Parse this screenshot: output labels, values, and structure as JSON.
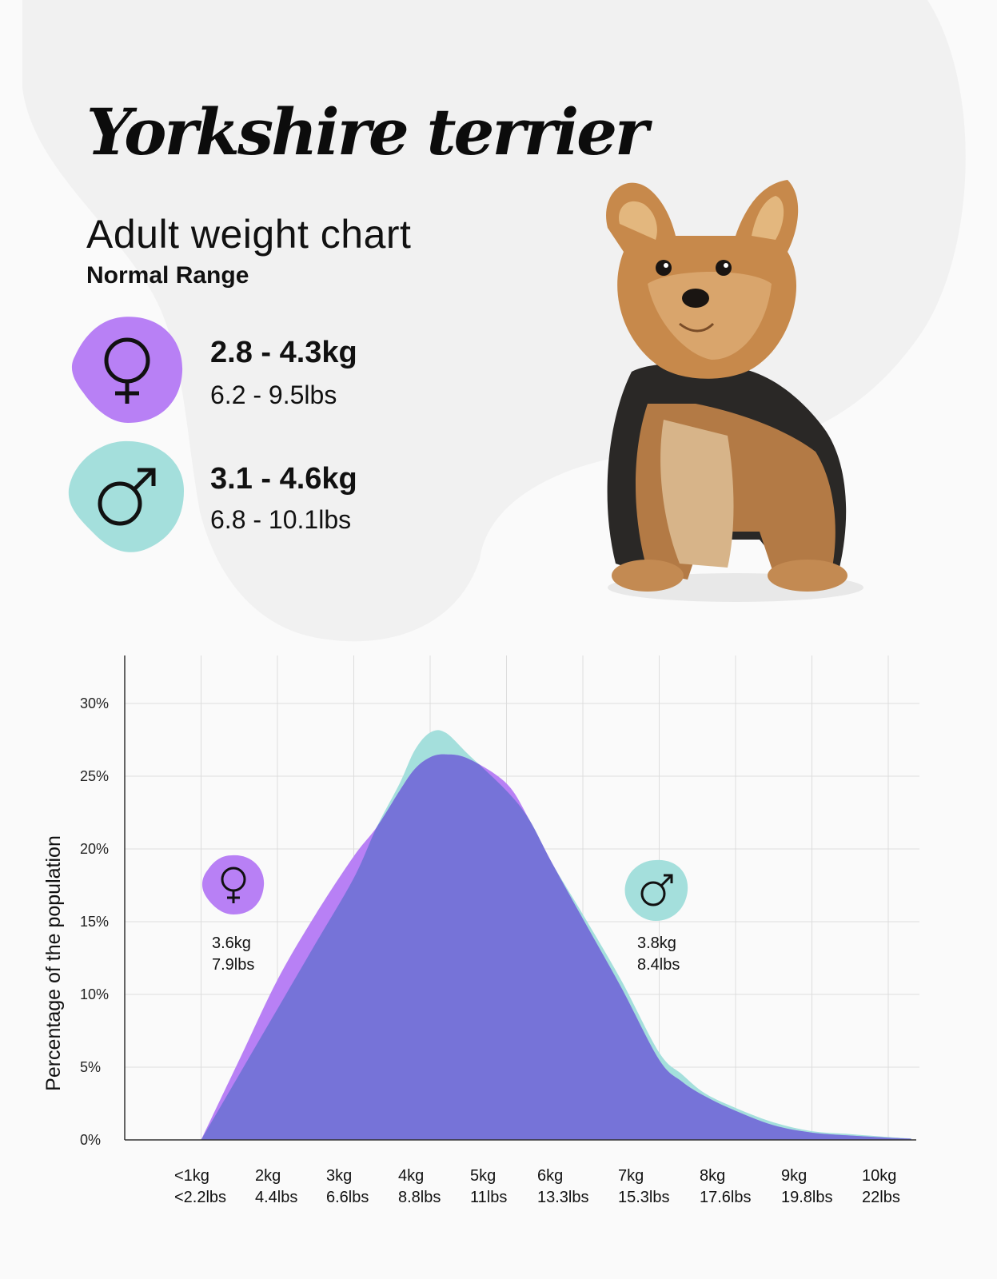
{
  "header": {
    "title": "Yorkshire terrier",
    "subtitle": "Adult weight chart",
    "range_label": "Normal Range"
  },
  "female": {
    "icon": "female-symbol-icon",
    "color": "#b880f5",
    "range_kg": "2.8 - 4.3kg",
    "range_lbs": "6.2 - 9.5lbs",
    "chart_marker_kg": "3.6kg",
    "chart_marker_lbs": "7.9lbs"
  },
  "male": {
    "icon": "male-symbol-icon",
    "color": "#a4dfdc",
    "range_kg": "3.1 - 4.6kg",
    "range_lbs": "6.8 - 10.1lbs",
    "chart_marker_kg": "3.8kg",
    "chart_marker_lbs": "8.4lbs"
  },
  "chart_data": {
    "type": "area",
    "ylabel": "Percentage of the population",
    "ylim": [
      0,
      33
    ],
    "yticks": [
      "0%",
      "5%",
      "10%",
      "15%",
      "20%",
      "25%",
      "30%"
    ],
    "ytick_values": [
      0,
      5,
      10,
      15,
      20,
      25,
      30
    ],
    "xlim": [
      0,
      10.5
    ],
    "x_tick_positions": [
      1,
      2,
      3,
      4,
      5,
      6,
      7,
      8,
      9,
      10
    ],
    "x_tick_labels": [
      [
        "<1kg",
        "<2.2lbs"
      ],
      [
        "2kg",
        "4.4lbs"
      ],
      [
        "3kg",
        "6.6lbs"
      ],
      [
        "4kg",
        "8.8lbs"
      ],
      [
        "5kg",
        "11lbs"
      ],
      [
        "6kg",
        "13.3lbs"
      ],
      [
        "7kg",
        "15.3lbs"
      ],
      [
        "8kg",
        "17.6lbs"
      ],
      [
        "9kg",
        "19.8lbs"
      ],
      [
        "10kg",
        "22lbs"
      ]
    ],
    "grid": true,
    "series": [
      {
        "name": "male",
        "color": "#a4dfdc",
        "points": [
          [
            1,
            0
          ],
          [
            1.5,
            4.5
          ],
          [
            2,
            9
          ],
          [
            2.5,
            13.5
          ],
          [
            3,
            18
          ],
          [
            3.3,
            21.5
          ],
          [
            3.6,
            24.5
          ],
          [
            3.8,
            26.8
          ],
          [
            4,
            28
          ],
          [
            4.2,
            28
          ],
          [
            4.5,
            26.5
          ],
          [
            5,
            24
          ],
          [
            5.3,
            22
          ],
          [
            5.6,
            19
          ],
          [
            6,
            15.5
          ],
          [
            6.5,
            11
          ],
          [
            7,
            6
          ],
          [
            7.3,
            4.5
          ],
          [
            7.6,
            3.2
          ],
          [
            8,
            2.2
          ],
          [
            8.5,
            1.2
          ],
          [
            9,
            0.6
          ],
          [
            9.5,
            0.4
          ],
          [
            10,
            0.2
          ],
          [
            10.3,
            0.1
          ]
        ]
      },
      {
        "name": "female",
        "color": "#b880f5",
        "points": [
          [
            1,
            0
          ],
          [
            1.5,
            5.5
          ],
          [
            2,
            11
          ],
          [
            2.5,
            15.5
          ],
          [
            3,
            19.5
          ],
          [
            3.3,
            21.5
          ],
          [
            3.6,
            24
          ],
          [
            3.8,
            25.5
          ],
          [
            4,
            26.3
          ],
          [
            4.2,
            26.5
          ],
          [
            4.5,
            26.2
          ],
          [
            5,
            24.5
          ],
          [
            5.3,
            22
          ],
          [
            5.6,
            19
          ],
          [
            6,
            15.2
          ],
          [
            6.5,
            10.5
          ],
          [
            7,
            5.5
          ],
          [
            7.3,
            4
          ],
          [
            7.6,
            3
          ],
          [
            8,
            2
          ],
          [
            8.5,
            1
          ],
          [
            9,
            0.5
          ],
          [
            9.5,
            0.3
          ],
          [
            10,
            0.15
          ],
          [
            10.3,
            0.08
          ]
        ]
      }
    ],
    "overlap_color": "#7673d8"
  }
}
